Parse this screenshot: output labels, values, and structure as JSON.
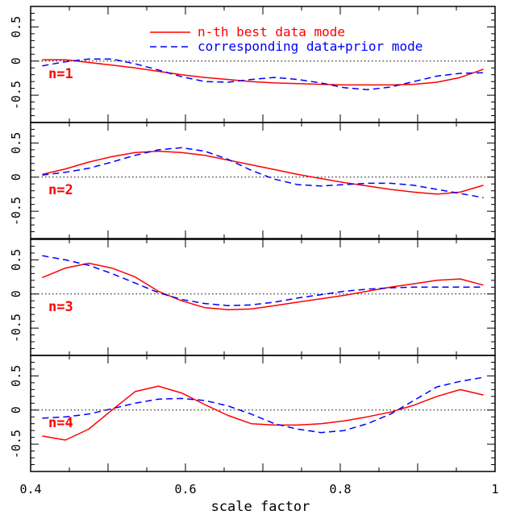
{
  "chart_data": {
    "type": "line",
    "xlabel": "scale factor",
    "xlim": [
      0.4,
      1.0
    ],
    "ylim": [
      -0.9,
      0.8
    ],
    "x_ticks": [
      "0.4",
      "0.6",
      "0.8",
      "1"
    ],
    "x_tick_values": [
      0.4,
      0.6,
      0.8,
      1.0
    ],
    "y_ticks": [
      "0.5",
      "0",
      "-0.5"
    ],
    "y_tick_values": [
      0.5,
      0,
      -0.5
    ],
    "reference_line": 0,
    "legend": {
      "placement": "top",
      "entries": [
        "n-th best data mode",
        "corresponding data+prior mode"
      ]
    },
    "colors": {
      "data": "#ff0000",
      "prior": "#0000ff",
      "axes": "#000000"
    },
    "panels": [
      {
        "label": "n=1",
        "series": [
          {
            "name": "n-th best data mode",
            "style": "solid",
            "x": [
              0.415,
              0.445,
              0.475,
              0.505,
              0.535,
              0.565,
              0.595,
              0.625,
              0.655,
              0.685,
              0.715,
              0.745,
              0.775,
              0.805,
              0.835,
              0.865,
              0.895,
              0.925,
              0.955,
              0.985
            ],
            "y": [
              0.02,
              0.02,
              -0.02,
              -0.06,
              -0.1,
              -0.15,
              -0.2,
              -0.24,
              -0.27,
              -0.3,
              -0.32,
              -0.33,
              -0.34,
              -0.35,
              -0.35,
              -0.35,
              -0.34,
              -0.31,
              -0.24,
              -0.12
            ]
          },
          {
            "name": "corresponding data+prior mode",
            "style": "dashed",
            "x": [
              0.415,
              0.445,
              0.475,
              0.505,
              0.535,
              0.565,
              0.595,
              0.625,
              0.655,
              0.685,
              0.715,
              0.745,
              0.775,
              0.805,
              0.835,
              0.865,
              0.895,
              0.925,
              0.955,
              0.985
            ],
            "y": [
              -0.07,
              -0.01,
              0.03,
              0.03,
              -0.04,
              -0.13,
              -0.23,
              -0.3,
              -0.31,
              -0.27,
              -0.24,
              -0.27,
              -0.32,
              -0.39,
              -0.42,
              -0.38,
              -0.3,
              -0.22,
              -0.18,
              -0.17
            ]
          }
        ]
      },
      {
        "label": "n=2",
        "series": [
          {
            "name": "n-th best data mode",
            "style": "solid",
            "x": [
              0.415,
              0.445,
              0.475,
              0.505,
              0.535,
              0.565,
              0.595,
              0.625,
              0.655,
              0.685,
              0.715,
              0.745,
              0.775,
              0.805,
              0.835,
              0.865,
              0.895,
              0.925,
              0.955,
              0.985
            ],
            "y": [
              0.04,
              0.12,
              0.22,
              0.3,
              0.36,
              0.38,
              0.36,
              0.32,
              0.25,
              0.18,
              0.11,
              0.04,
              -0.02,
              -0.08,
              -0.13,
              -0.18,
              -0.22,
              -0.25,
              -0.22,
              -0.12
            ]
          },
          {
            "name": "corresponding data+prior mode",
            "style": "dashed",
            "x": [
              0.415,
              0.445,
              0.475,
              0.505,
              0.535,
              0.565,
              0.595,
              0.625,
              0.655,
              0.685,
              0.715,
              0.745,
              0.775,
              0.805,
              0.835,
              0.865,
              0.895,
              0.925,
              0.955,
              0.985
            ],
            "y": [
              0.03,
              0.07,
              0.13,
              0.22,
              0.32,
              0.4,
              0.43,
              0.38,
              0.26,
              0.1,
              -0.03,
              -0.11,
              -0.13,
              -0.11,
              -0.09,
              -0.09,
              -0.12,
              -0.18,
              -0.24,
              -0.3
            ]
          }
        ]
      },
      {
        "label": "n=3",
        "series": [
          {
            "name": "n-th best data mode",
            "style": "solid",
            "x": [
              0.415,
              0.445,
              0.475,
              0.505,
              0.535,
              0.565,
              0.595,
              0.625,
              0.655,
              0.685,
              0.715,
              0.745,
              0.775,
              0.805,
              0.835,
              0.865,
              0.895,
              0.925,
              0.955,
              0.985
            ],
            "y": [
              0.24,
              0.38,
              0.45,
              0.38,
              0.25,
              0.04,
              -0.1,
              -0.2,
              -0.23,
              -0.22,
              -0.17,
              -0.12,
              -0.07,
              -0.02,
              0.04,
              0.1,
              0.15,
              0.2,
              0.22,
              0.13
            ]
          },
          {
            "name": "corresponding data+prior mode",
            "style": "dashed",
            "x": [
              0.415,
              0.445,
              0.475,
              0.505,
              0.535,
              0.565,
              0.595,
              0.625,
              0.655,
              0.685,
              0.715,
              0.745,
              0.775,
              0.805,
              0.835,
              0.865,
              0.895,
              0.925,
              0.955,
              0.985
            ],
            "y": [
              0.56,
              0.5,
              0.42,
              0.3,
              0.16,
              0.02,
              -0.08,
              -0.14,
              -0.17,
              -0.16,
              -0.12,
              -0.06,
              -0.01,
              0.04,
              0.07,
              0.09,
              0.1,
              0.1,
              0.1,
              0.1
            ]
          }
        ]
      },
      {
        "label": "n=4",
        "series": [
          {
            "name": "n-th best data mode",
            "style": "solid",
            "x": [
              0.415,
              0.445,
              0.475,
              0.505,
              0.535,
              0.565,
              0.595,
              0.625,
              0.655,
              0.685,
              0.715,
              0.745,
              0.775,
              0.805,
              0.835,
              0.865,
              0.895,
              0.925,
              0.955,
              0.985
            ],
            "y": [
              -0.38,
              -0.44,
              -0.28,
              0.0,
              0.27,
              0.35,
              0.25,
              0.08,
              -0.08,
              -0.2,
              -0.22,
              -0.22,
              -0.2,
              -0.16,
              -0.1,
              -0.03,
              0.07,
              0.2,
              0.3,
              0.22
            ]
          },
          {
            "name": "corresponding data+prior mode",
            "style": "dashed",
            "x": [
              0.415,
              0.445,
              0.475,
              0.505,
              0.535,
              0.565,
              0.595,
              0.625,
              0.655,
              0.685,
              0.715,
              0.745,
              0.775,
              0.805,
              0.835,
              0.865,
              0.895,
              0.925,
              0.955,
              0.985
            ],
            "y": [
              -0.12,
              -0.1,
              -0.06,
              0.02,
              0.1,
              0.16,
              0.17,
              0.14,
              0.06,
              -0.06,
              -0.2,
              -0.28,
              -0.33,
              -0.3,
              -0.2,
              -0.06,
              0.14,
              0.34,
              0.42,
              0.48
            ]
          }
        ]
      }
    ]
  }
}
